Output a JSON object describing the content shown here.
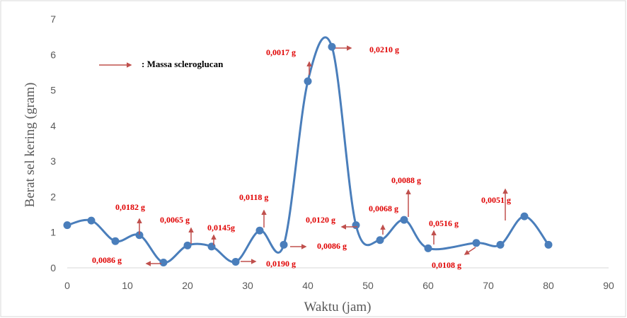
{
  "chart_data": {
    "type": "line",
    "x_label": "Waktu (jam)",
    "y_label": "Berat sel kering (gram)",
    "x": [
      0,
      4,
      8,
      12,
      16,
      20,
      24,
      28,
      32,
      36,
      40,
      44,
      48,
      52,
      56,
      60,
      68,
      72,
      76,
      80
    ],
    "series": [
      {
        "name": "Berat sel kering",
        "color": "#4a7ebb",
        "values": [
          1.2,
          1.33,
          0.75,
          0.92,
          0.15,
          0.63,
          0.6,
          0.17,
          1.05,
          0.65,
          5.25,
          6.22,
          1.2,
          0.78,
          1.35,
          0.55,
          0.7,
          0.65,
          1.45,
          0.65
        ]
      }
    ],
    "xlim": [
      0,
      90
    ],
    "xticks": [
      0,
      10,
      20,
      30,
      40,
      50,
      60,
      70,
      80,
      90
    ],
    "ylim": [
      0,
      7
    ],
    "yticks": [
      0,
      1,
      2,
      3,
      4,
      5,
      6,
      7
    ],
    "legend_text": ": Massa scleroglucan",
    "arrow_color": "#c0504d",
    "annotations": [
      "0,0182 g",
      "0,0086 g",
      "0,0065 g",
      "0,0145g",
      "0,0118 g",
      "0,0190 g",
      "0,0017 g",
      "0,0210 g",
      "0,0120 g",
      "0,0086 g",
      "0,0068 g",
      "0,0088 g",
      "0,0516 g",
      "0,0108 g",
      "0,0051 g"
    ]
  }
}
